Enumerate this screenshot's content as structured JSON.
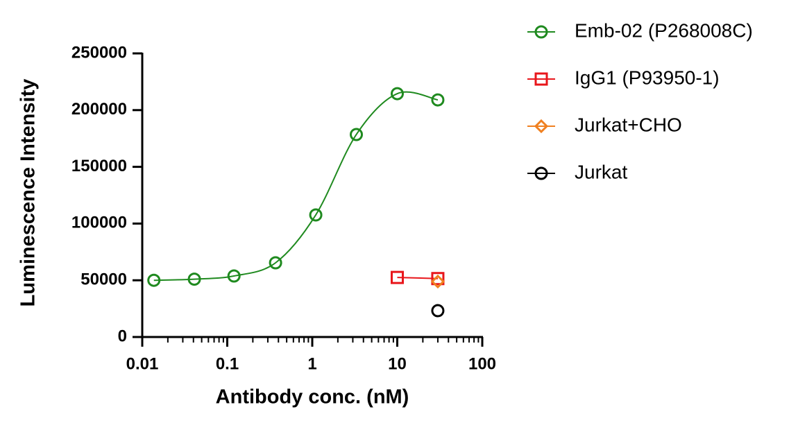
{
  "chart_data": {
    "type": "line",
    "x_label": "Antibody conc. (nM)",
    "y_label": "Luminescence Intensity",
    "x_scale": "log",
    "xlim": [
      0.01,
      100
    ],
    "xticks": [
      0.01,
      0.1,
      1,
      10,
      100
    ],
    "ylim": [
      0,
      250000
    ],
    "yticks": [
      0,
      50000,
      100000,
      150000,
      200000,
      250000
    ],
    "legend": "right",
    "series": [
      {
        "name": "Emb-02 (P268008C)",
        "color": "#1f8a1f",
        "marker": "circle",
        "x": [
          0.0137,
          0.041,
          0.12,
          0.37,
          1.1,
          3.3,
          10,
          30
        ],
        "values": [
          50000,
          51000,
          53800,
          65400,
          107600,
          178500,
          214500,
          209000
        ]
      },
      {
        "name": "IgG1 (P93950-1)",
        "color": "#e8161b",
        "marker": "square",
        "x": [
          10,
          30
        ],
        "values": [
          52500,
          51500
        ]
      },
      {
        "name": "Jurkat+CHO",
        "color": "#f08020",
        "marker": "diamond",
        "x": [
          30
        ],
        "values": [
          48900
        ]
      },
      {
        "name": "Jurkat",
        "color": "#000000",
        "marker": "circle",
        "x": [
          30
        ],
        "values": [
          23200
        ]
      }
    ]
  }
}
